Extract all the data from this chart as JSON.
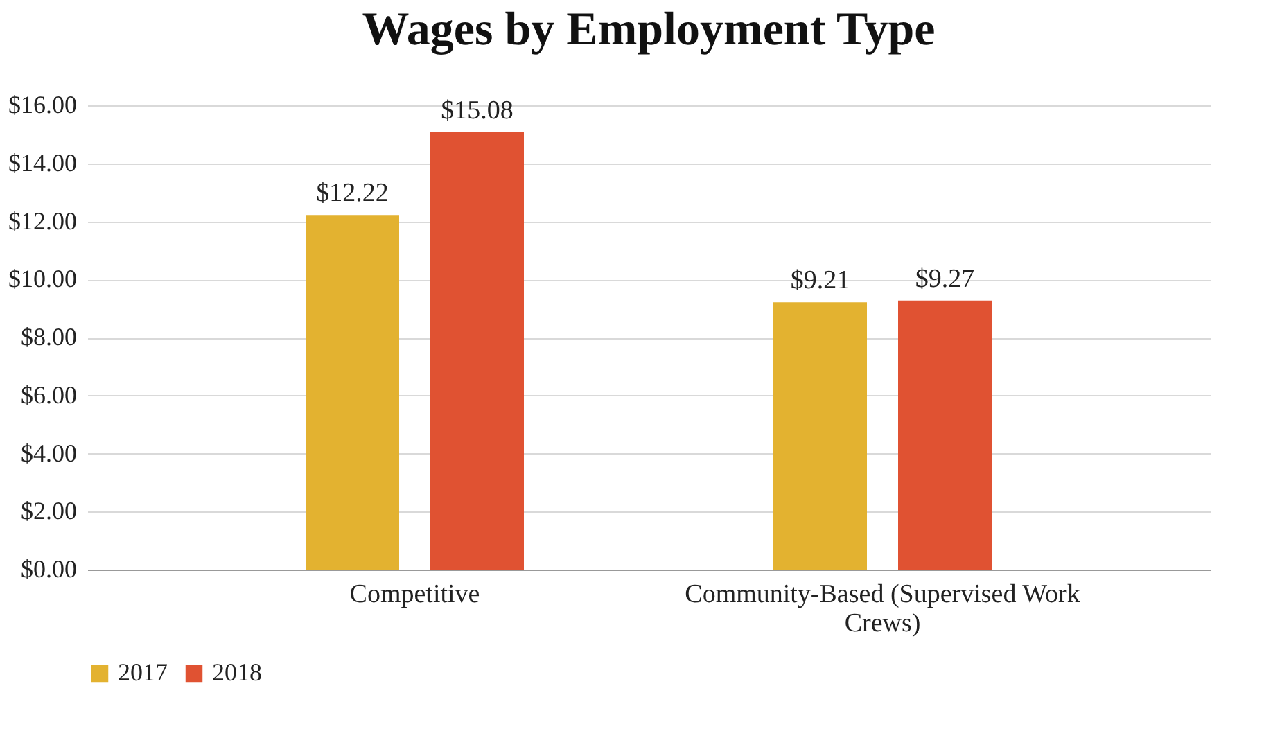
{
  "chart_data": {
    "type": "bar",
    "title": "Wages by Employment Type",
    "categories": [
      "Competitive",
      "Community-Based (Supervised Work Crews)"
    ],
    "series": [
      {
        "name": "2017",
        "color": "#e3b230",
        "values": [
          12.22,
          9.21
        ],
        "value_labels": [
          "$12.22",
          "$9.21"
        ]
      },
      {
        "name": "2018",
        "color": "#e05232",
        "values": [
          15.08,
          9.27
        ],
        "value_labels": [
          "$15.08",
          "$9.27"
        ]
      }
    ],
    "ylim": [
      0,
      16
    ],
    "yticks": [
      {
        "value": 0,
        "label": "$0.00"
      },
      {
        "value": 2,
        "label": "$2.00"
      },
      {
        "value": 4,
        "label": "$4.00"
      },
      {
        "value": 6,
        "label": "$6.00"
      },
      {
        "value": 8,
        "label": "$8.00"
      },
      {
        "value": 10,
        "label": "$10.00"
      },
      {
        "value": 12,
        "label": "$12.00"
      },
      {
        "value": 14,
        "label": "$14.00"
      },
      {
        "value": 16,
        "label": "$16.00"
      }
    ],
    "grid": "y",
    "legend": "bottom"
  }
}
